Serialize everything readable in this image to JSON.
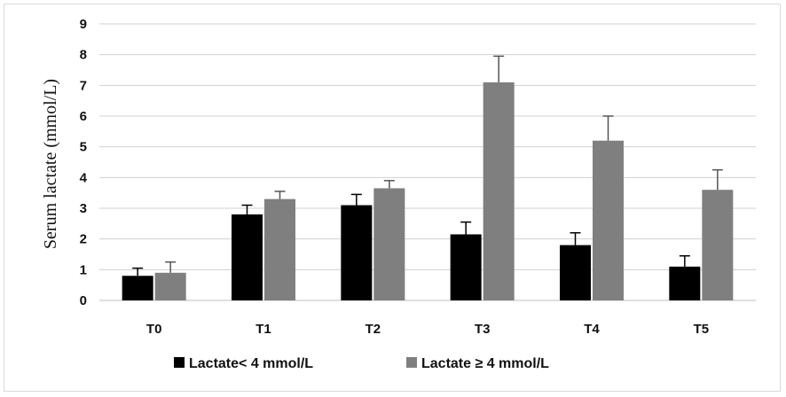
{
  "chart_data": {
    "type": "bar",
    "title": "",
    "xlabel": "",
    "ylabel": "Serum lactate (mmol/L)",
    "ylim": [
      0,
      9
    ],
    "yticks": [
      0,
      1,
      2,
      3,
      4,
      5,
      6,
      7,
      8,
      9
    ],
    "grid": true,
    "legend_position": "bottom",
    "categories": [
      "T0",
      "T1",
      "T2",
      "T3",
      "T4",
      "T5"
    ],
    "series": [
      {
        "name": "Lactate< 4 mmol/L",
        "color": "#000000",
        "values": [
          0.8,
          2.8,
          3.1,
          2.15,
          1.8,
          1.1
        ],
        "errors": [
          0.25,
          0.3,
          0.35,
          0.4,
          0.4,
          0.35
        ]
      },
      {
        "name": "Lactate ≥ 4 mmol/L",
        "color": "#7f7f7f",
        "values": [
          0.9,
          3.3,
          3.65,
          7.1,
          5.2,
          3.6
        ],
        "errors": [
          0.35,
          0.25,
          0.25,
          0.85,
          0.8,
          0.65
        ]
      }
    ]
  }
}
